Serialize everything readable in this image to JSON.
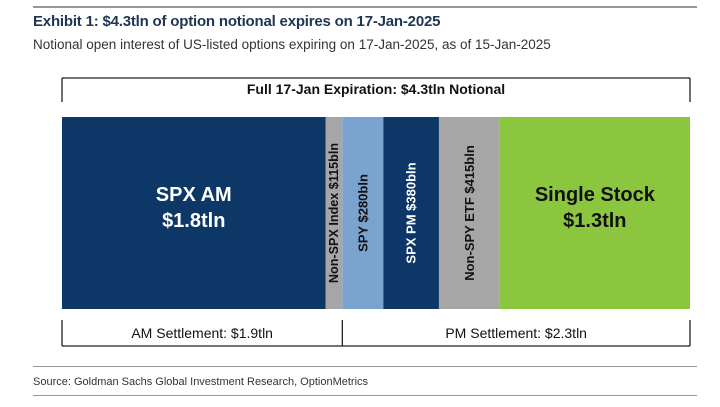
{
  "title": "Exhibit 1: $4.3tln of option notional expires on 17-Jan-2025",
  "subtitle": "Notional open interest of US-listed options expiring on 17-Jan-2025, as of 15-Jan-2025",
  "source": "Source: Goldman Sachs Global Investment Research, OptionMetrics",
  "chart_data": {
    "type": "bar",
    "orientation": "horizontal-stacked",
    "unit": "bln",
    "total_label": "Full 17-Jan Expiration: $4.3tln Notional",
    "total_value": 4300,
    "segments": [
      {
        "id": "spx-am",
        "label": "SPX AM",
        "value_label": "$1.8tln",
        "value": 1800,
        "color": "#0d3766",
        "text_color": "#ffffff",
        "orientation": "horizontal"
      },
      {
        "id": "non-spx-index",
        "label": "Non-SPX Index $115bln",
        "value": 115,
        "color": "#a6a6a6",
        "text_color": "#111111",
        "orientation": "vertical"
      },
      {
        "id": "spy",
        "label": "SPY $280bln",
        "value": 280,
        "color": "#7ba3cf",
        "text_color": "#111111",
        "orientation": "vertical"
      },
      {
        "id": "spx-pm",
        "label": "SPX PM $380bln",
        "value": 380,
        "color": "#0d3766",
        "text_color": "#ffffff",
        "orientation": "vertical"
      },
      {
        "id": "non-spy-etf",
        "label": "Non-SPY ETF $415bln",
        "value": 415,
        "color": "#a6a6a6",
        "text_color": "#111111",
        "orientation": "vertical"
      },
      {
        "id": "single-stock",
        "label": "Single Stock",
        "value_label": "$1.3tln",
        "value": 1300,
        "color": "#8cc63f",
        "text_color": "#111111",
        "orientation": "horizontal"
      }
    ],
    "groups": [
      {
        "label": "AM Settlement: $1.9tln",
        "value": 1915
      },
      {
        "label": "PM Settlement: $2.3tln",
        "value": 2375
      }
    ]
  }
}
